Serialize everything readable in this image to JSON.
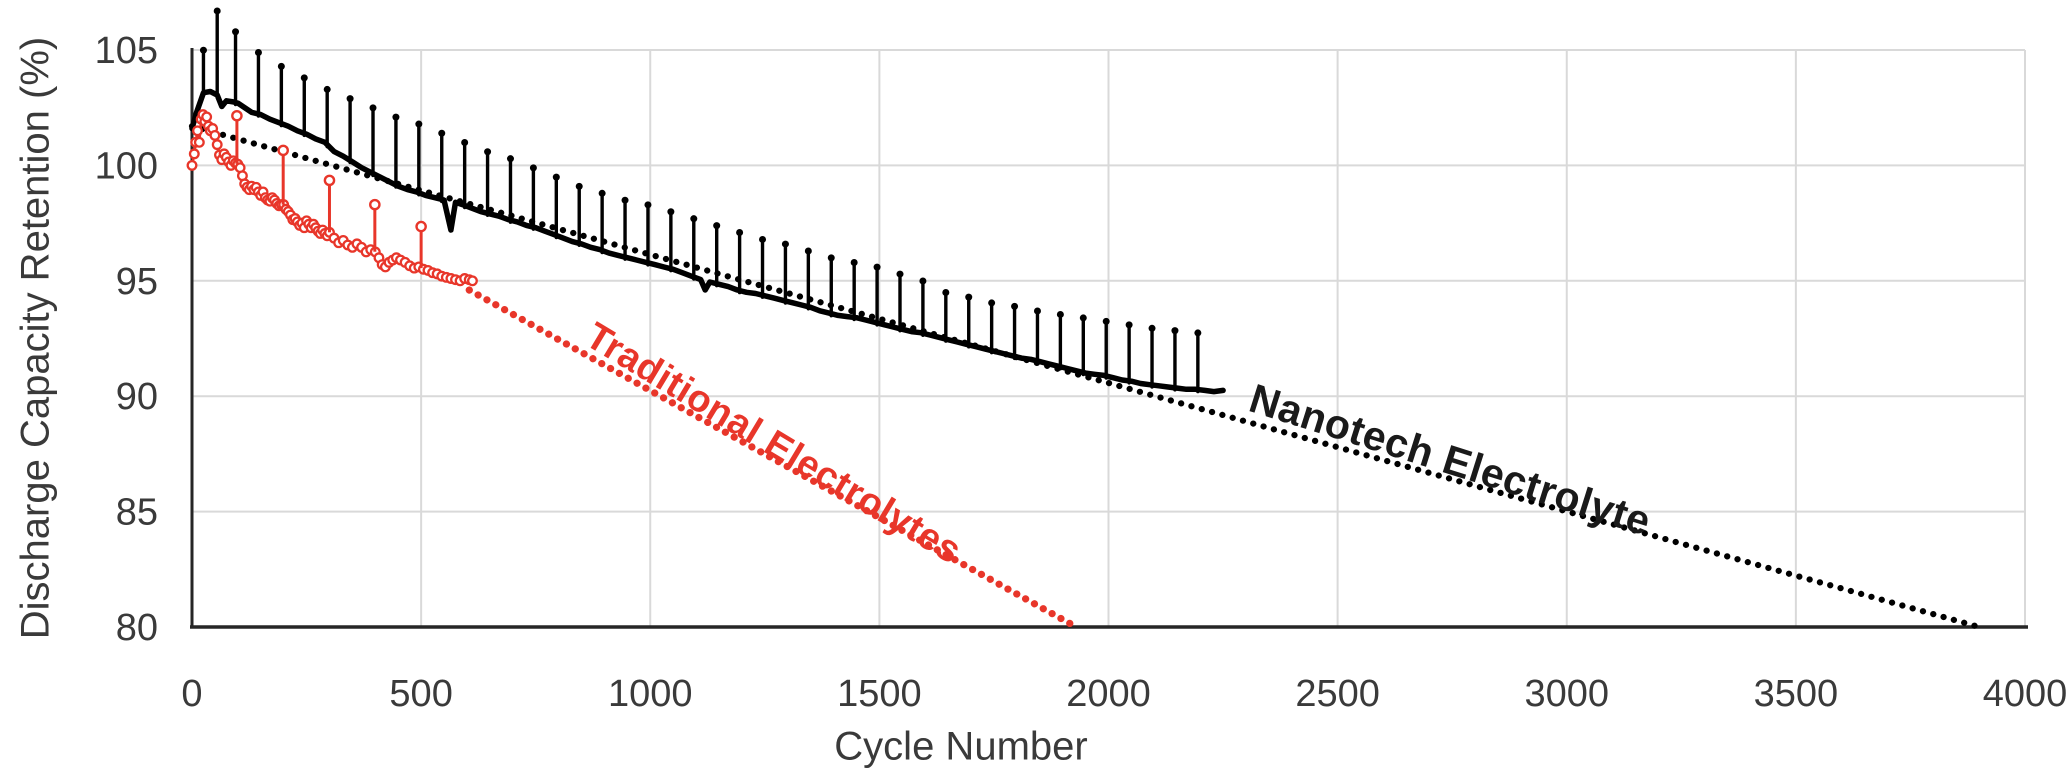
{
  "chart_data": {
    "type": "line",
    "title": "",
    "xlabel": "Cycle Number",
    "ylabel": "Discharge Capacity Retention (%)",
    "xlim": [
      0,
      4000
    ],
    "ylim": [
      80,
      105
    ],
    "x_ticks": [
      0,
      500,
      1000,
      1500,
      2000,
      2500,
      3000,
      3500,
      4000
    ],
    "y_ticks": [
      80,
      85,
      90,
      95,
      100,
      105
    ],
    "grid": true,
    "legend_position": "none",
    "colors": {
      "traditional": "#E8362A",
      "nanotech": "#000000",
      "gridline": "#D9D9D9",
      "axis_line": "#262626",
      "tick_text": "#3A3A3A"
    },
    "series": [
      {
        "name": "Nanotech Electrolyte (measured)",
        "draw": "band",
        "color": "#000000",
        "points": [
          [
            0,
            101.6
          ],
          [
            10,
            102.3
          ],
          [
            25,
            103.15
          ],
          [
            40,
            103.2
          ],
          [
            55,
            103.05
          ],
          [
            65,
            102.55
          ],
          [
            75,
            102.8
          ],
          [
            90,
            102.75
          ],
          [
            100,
            102.7
          ],
          [
            115,
            102.5
          ],
          [
            130,
            102.3
          ],
          [
            150,
            102.2
          ],
          [
            170,
            102.0
          ],
          [
            190,
            101.85
          ],
          [
            210,
            101.7
          ],
          [
            230,
            101.5
          ],
          [
            250,
            101.35
          ],
          [
            270,
            101.15
          ],
          [
            290,
            101.0
          ],
          [
            310,
            100.6
          ],
          [
            330,
            100.4
          ],
          [
            350,
            100.15
          ],
          [
            370,
            99.9
          ],
          [
            390,
            99.7
          ],
          [
            410,
            99.5
          ],
          [
            430,
            99.3
          ],
          [
            450,
            99.1
          ],
          [
            470,
            98.95
          ],
          [
            490,
            98.85
          ],
          [
            510,
            98.7
          ],
          [
            530,
            98.6
          ],
          [
            550,
            98.5
          ],
          [
            565,
            97.2
          ],
          [
            575,
            98.4
          ],
          [
            590,
            98.3
          ],
          [
            610,
            98.15
          ],
          [
            630,
            98.0
          ],
          [
            650,
            97.9
          ],
          [
            670,
            97.8
          ],
          [
            690,
            97.65
          ],
          [
            710,
            97.55
          ],
          [
            730,
            97.4
          ],
          [
            750,
            97.3
          ],
          [
            770,
            97.15
          ],
          [
            790,
            97.0
          ],
          [
            810,
            96.85
          ],
          [
            830,
            96.7
          ],
          [
            850,
            96.6
          ],
          [
            870,
            96.45
          ],
          [
            890,
            96.35
          ],
          [
            910,
            96.2
          ],
          [
            930,
            96.1
          ],
          [
            950,
            96.0
          ],
          [
            970,
            95.9
          ],
          [
            990,
            95.8
          ],
          [
            1010,
            95.7
          ],
          [
            1030,
            95.6
          ],
          [
            1050,
            95.5
          ],
          [
            1070,
            95.35
          ],
          [
            1090,
            95.2
          ],
          [
            1110,
            95.05
          ],
          [
            1120,
            94.6
          ],
          [
            1130,
            94.95
          ],
          [
            1150,
            94.85
          ],
          [
            1170,
            94.75
          ],
          [
            1190,
            94.6
          ],
          [
            1210,
            94.5
          ],
          [
            1230,
            94.45
          ],
          [
            1250,
            94.35
          ],
          [
            1270,
            94.25
          ],
          [
            1290,
            94.15
          ],
          [
            1310,
            94.05
          ],
          [
            1330,
            93.95
          ],
          [
            1350,
            93.85
          ],
          [
            1370,
            93.7
          ],
          [
            1390,
            93.6
          ],
          [
            1410,
            93.5
          ],
          [
            1430,
            93.45
          ],
          [
            1450,
            93.4
          ],
          [
            1470,
            93.3
          ],
          [
            1490,
            93.2
          ],
          [
            1510,
            93.1
          ],
          [
            1530,
            93.0
          ],
          [
            1550,
            92.9
          ],
          [
            1570,
            92.8
          ],
          [
            1590,
            92.75
          ],
          [
            1610,
            92.65
          ],
          [
            1630,
            92.55
          ],
          [
            1650,
            92.45
          ],
          [
            1670,
            92.35
          ],
          [
            1690,
            92.25
          ],
          [
            1710,
            92.15
          ],
          [
            1730,
            92.05
          ],
          [
            1750,
            91.95
          ],
          [
            1770,
            91.85
          ],
          [
            1790,
            91.75
          ],
          [
            1810,
            91.65
          ],
          [
            1830,
            91.6
          ],
          [
            1850,
            91.5
          ],
          [
            1870,
            91.4
          ],
          [
            1890,
            91.3
          ],
          [
            1910,
            91.2
          ],
          [
            1930,
            91.1
          ],
          [
            1950,
            91.0
          ],
          [
            1970,
            90.95
          ],
          [
            1990,
            90.9
          ],
          [
            2010,
            90.8
          ],
          [
            2030,
            90.7
          ],
          [
            2050,
            90.65
          ],
          [
            2070,
            90.55
          ],
          [
            2090,
            90.5
          ],
          [
            2110,
            90.45
          ],
          [
            2130,
            90.4
          ],
          [
            2150,
            90.35
          ],
          [
            2170,
            90.3
          ],
          [
            2190,
            90.3
          ],
          [
            2210,
            90.25
          ],
          [
            2230,
            90.2
          ],
          [
            2250,
            90.25
          ]
        ]
      },
      {
        "name": "Nanotech Electrolyte capacity-check spikes",
        "draw": "stems-filled",
        "color": "#000000",
        "tops": [
          [
            25,
            105.1
          ],
          [
            55,
            106.8
          ],
          [
            95,
            105.9
          ],
          [
            145,
            105.0
          ],
          [
            195,
            104.4
          ],
          [
            245,
            103.9
          ],
          [
            295,
            103.4
          ],
          [
            345,
            103.0
          ],
          [
            395,
            102.6
          ],
          [
            445,
            102.2
          ],
          [
            495,
            101.9
          ],
          [
            545,
            101.5
          ],
          [
            595,
            101.1
          ],
          [
            645,
            100.7
          ],
          [
            695,
            100.4
          ],
          [
            745,
            100.0
          ],
          [
            795,
            99.6
          ],
          [
            845,
            99.2
          ],
          [
            895,
            98.9
          ],
          [
            945,
            98.6
          ],
          [
            995,
            98.4
          ],
          [
            1045,
            98.1
          ],
          [
            1095,
            97.8
          ],
          [
            1145,
            97.5
          ],
          [
            1195,
            97.2
          ],
          [
            1245,
            96.9
          ],
          [
            1295,
            96.7
          ],
          [
            1345,
            96.4
          ],
          [
            1395,
            96.1
          ],
          [
            1445,
            95.9
          ],
          [
            1495,
            95.7
          ],
          [
            1545,
            95.4
          ],
          [
            1595,
            95.1
          ],
          [
            1645,
            94.6
          ],
          [
            1695,
            94.4
          ],
          [
            1745,
            94.15
          ],
          [
            1795,
            94.0
          ],
          [
            1845,
            93.8
          ],
          [
            1895,
            93.65
          ],
          [
            1945,
            93.5
          ],
          [
            1995,
            93.35
          ],
          [
            2045,
            93.2
          ],
          [
            2095,
            93.05
          ],
          [
            2145,
            92.95
          ],
          [
            2195,
            92.85
          ]
        ]
      },
      {
        "name": "Nanotech Electrolyte trend (dotted extrapolation)",
        "draw": "dotted",
        "color": "#000000",
        "from": [
          0,
          101.7
        ],
        "to": [
          3900,
          80.0
        ]
      },
      {
        "name": "Traditional Electrolytes (measured)",
        "draw": "line-markers",
        "color": "#E8362A",
        "points": [
          [
            0,
            100.0
          ],
          [
            5,
            100.5
          ],
          [
            8,
            101.0
          ],
          [
            12,
            101.5
          ],
          [
            16,
            101.0
          ],
          [
            20,
            102.0
          ],
          [
            24,
            102.2
          ],
          [
            28,
            101.9
          ],
          [
            32,
            102.1
          ],
          [
            36,
            101.7
          ],
          [
            40,
            101.5
          ],
          [
            45,
            101.6
          ],
          [
            50,
            101.3
          ],
          [
            55,
            100.9
          ],
          [
            60,
            100.45
          ],
          [
            65,
            100.25
          ],
          [
            70,
            100.5
          ],
          [
            75,
            100.35
          ],
          [
            80,
            100.15
          ],
          [
            85,
            100.0
          ],
          [
            90,
            100.2
          ],
          [
            95,
            100.1
          ],
          [
            100,
            100.05
          ],
          [
            105,
            99.9
          ],
          [
            110,
            99.55
          ],
          [
            115,
            99.2
          ],
          [
            120,
            99.05
          ],
          [
            125,
            98.95
          ],
          [
            130,
            99.1
          ],
          [
            135,
            98.95
          ],
          [
            140,
            99.05
          ],
          [
            145,
            98.85
          ],
          [
            150,
            98.7
          ],
          [
            155,
            98.85
          ],
          [
            160,
            98.6
          ],
          [
            165,
            98.5
          ],
          [
            170,
            98.45
          ],
          [
            175,
            98.6
          ],
          [
            180,
            98.5
          ],
          [
            185,
            98.35
          ],
          [
            190,
            98.25
          ],
          [
            195,
            98.3
          ],
          [
            200,
            98.3
          ],
          [
            205,
            98.1
          ],
          [
            210,
            98.0
          ],
          [
            215,
            97.85
          ],
          [
            220,
            97.65
          ],
          [
            225,
            97.7
          ],
          [
            230,
            97.55
          ],
          [
            235,
            97.4
          ],
          [
            240,
            97.5
          ],
          [
            245,
            97.3
          ],
          [
            250,
            97.6
          ],
          [
            255,
            97.45
          ],
          [
            260,
            97.3
          ],
          [
            265,
            97.45
          ],
          [
            270,
            97.3
          ],
          [
            275,
            97.15
          ],
          [
            280,
            97.05
          ],
          [
            285,
            97.2
          ],
          [
            290,
            97.05
          ],
          [
            295,
            96.95
          ],
          [
            300,
            97.1
          ],
          [
            310,
            96.85
          ],
          [
            320,
            96.65
          ],
          [
            330,
            96.75
          ],
          [
            340,
            96.55
          ],
          [
            350,
            96.45
          ],
          [
            360,
            96.6
          ],
          [
            370,
            96.45
          ],
          [
            380,
            96.25
          ],
          [
            390,
            96.35
          ],
          [
            400,
            96.25
          ],
          [
            408,
            96.0
          ],
          [
            415,
            95.7
          ],
          [
            422,
            95.6
          ],
          [
            430,
            95.8
          ],
          [
            438,
            95.9
          ],
          [
            446,
            96.0
          ],
          [
            455,
            95.9
          ],
          [
            465,
            95.8
          ],
          [
            475,
            95.65
          ],
          [
            485,
            95.55
          ],
          [
            495,
            95.6
          ],
          [
            505,
            95.5
          ],
          [
            515,
            95.45
          ],
          [
            525,
            95.35
          ],
          [
            535,
            95.3
          ],
          [
            545,
            95.2
          ],
          [
            555,
            95.15
          ],
          [
            565,
            95.1
          ],
          [
            575,
            95.05
          ],
          [
            585,
            95.0
          ],
          [
            595,
            95.1
          ],
          [
            605,
            95.05
          ],
          [
            612,
            95.0
          ]
        ]
      },
      {
        "name": "Traditional Electrolytes capacity-check spikes",
        "draw": "stems-open",
        "color": "#E8362A",
        "tops": [
          [
            98,
            102.15
          ],
          [
            199,
            100.65
          ],
          [
            300,
            99.35
          ],
          [
            399,
            98.3
          ],
          [
            500,
            97.35
          ]
        ]
      },
      {
        "name": "Traditional Electrolytes trend (dotted extrapolation)",
        "draw": "dotted-heavy",
        "color": "#E8362A",
        "from": [
          605,
          94.6
        ],
        "to": [
          1925,
          80.05
        ]
      }
    ],
    "annotations": [
      {
        "text": "Traditional Electrolytes",
        "color": "#E8362A",
        "x": 890,
        "y": 93.5,
        "rotation": 31
      },
      {
        "text": "Nanotech Electrolyte",
        "color": "#1A1A1A",
        "x": 2326,
        "y": 90.9,
        "rotation": 17.5
      }
    ]
  }
}
